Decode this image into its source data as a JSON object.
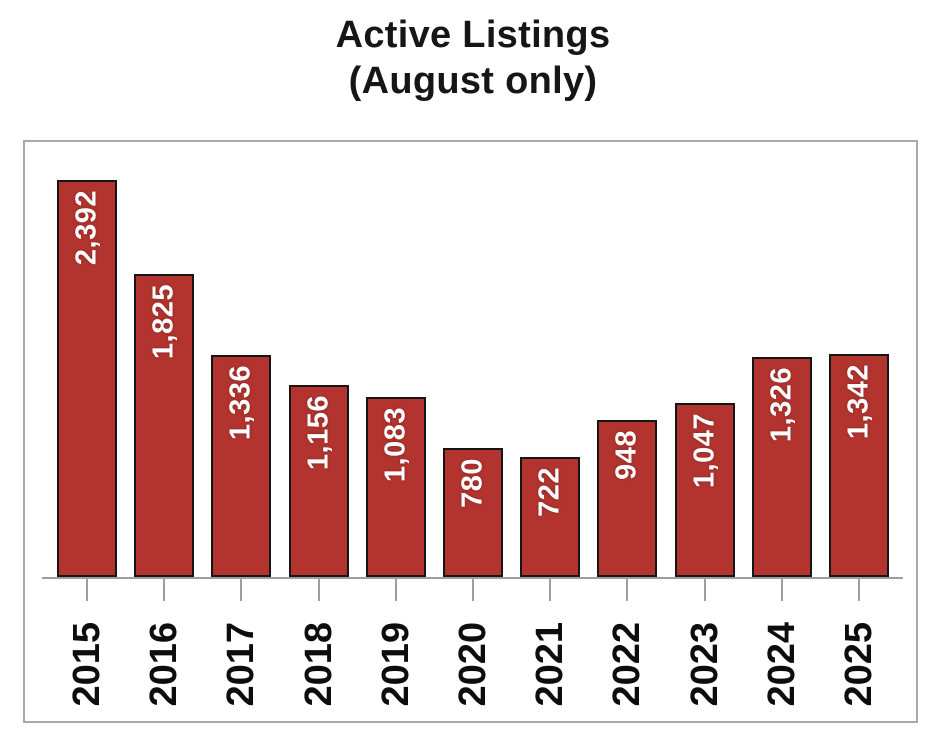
{
  "header": {
    "title": "Active Listings",
    "subtitle": "(August only)"
  },
  "chart_data": {
    "type": "bar",
    "title": "Active Listings",
    "subtitle": "(August only)",
    "categories": [
      "2015",
      "2016",
      "2017",
      "2018",
      "2019",
      "2020",
      "2021",
      "2022",
      "2023",
      "2024",
      "2025"
    ],
    "values": [
      2392,
      1825,
      1336,
      1156,
      1083,
      780,
      722,
      948,
      1047,
      1326,
      1342
    ],
    "value_labels": [
      "2,392",
      "1,825",
      "1,336",
      "1,156",
      "1,083",
      "780",
      "722",
      "948",
      "1,047",
      "1,326",
      "1,342"
    ],
    "xlabel": "",
    "ylabel": "",
    "ylim": [
      0,
      2630
    ],
    "grid": false,
    "legend": false,
    "y_axis_visible": false,
    "value_label_rotation": -90,
    "category_label_rotation": -90,
    "colors": {
      "bar_fill": "#b3342f",
      "bar_border": "#161616",
      "value_label": "#ffffff",
      "axis_line": "#9d9d9d",
      "tick": "#9d9d9d",
      "frame_border": "#a9a9a9",
      "title_text": "#161616",
      "category_label": "#0d0d0d"
    }
  }
}
